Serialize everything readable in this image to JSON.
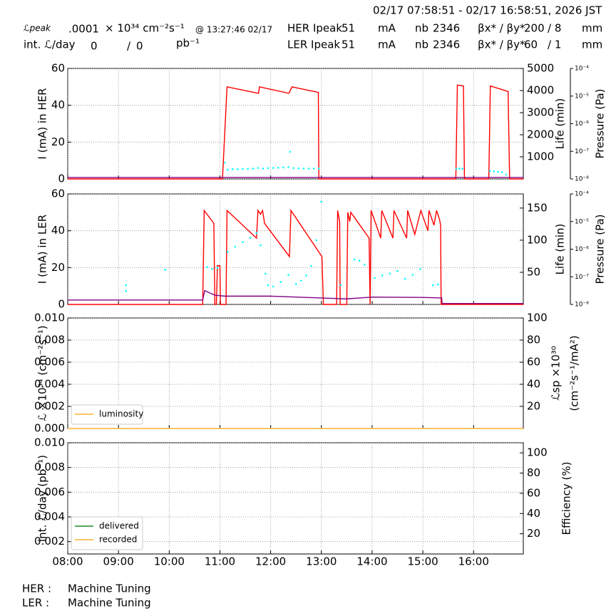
{
  "header": {
    "range": "02/17 07:58:51 - 02/17 16:58:51, 2026 JST",
    "lpeak_label": "ℒpeak",
    "lpeak_value": ".0001",
    "lpeak_unit": "× 10³⁴ cm⁻²s⁻¹",
    "lpeak_time": "@ 13:27:46 02/17",
    "intl_label": "int. ℒ/day",
    "intl_delivered": "0",
    "intl_sep": "/",
    "intl_recorded": "0",
    "intl_unit": "pb⁻¹",
    "her": {
      "label": "HER Ipeak",
      "current": "51",
      "current_unit": "mA",
      "nb_label": "nb",
      "nb": "2346",
      "beta_label": "βx* / βy*",
      "beta_x": "200",
      "beta_y": "/ 8",
      "beta_unit": "mm"
    },
    "ler": {
      "label": "LER Ipeak",
      "current": "51",
      "current_unit": "mA",
      "nb_label": "nb",
      "nb": "2346",
      "beta_label": "βx* / βy*",
      "beta_x": "60",
      "beta_y": "/ 1",
      "beta_unit": "mm"
    }
  },
  "chart_data": [
    {
      "type": "line",
      "ylabel": "I (mA) in HER",
      "y2label": "Life (min)",
      "y3label": "Pressure (Pa)",
      "ylim": [
        0,
        60
      ],
      "yticks": [
        0,
        20,
        40,
        60
      ],
      "y2lim": [
        0,
        5000
      ],
      "y2ticks": [
        1000,
        2000,
        3000,
        4000,
        5000
      ],
      "y3lim": [
        1e-08,
        0.0001
      ],
      "y3scale": "log",
      "y3ticks": [
        {
          "value": 1e-08,
          "label": "10⁻⁸"
        },
        {
          "value": 1e-07,
          "label": "10⁻⁷"
        },
        {
          "value": 1e-06,
          "label": "10⁻⁶"
        },
        {
          "value": 1e-05,
          "label": "10⁻⁵"
        },
        {
          "value": 0.0001,
          "label": "10⁻⁴"
        }
      ],
      "grid": true,
      "series": [
        {
          "color": "#ff0000",
          "x": [
            8,
            11.05,
            11.14,
            11.76,
            11.78,
            12.36,
            12.42,
            12.94,
            12.95,
            15.65,
            15.68,
            15.8,
            15.82,
            16.3,
            16.33,
            16.68,
            16.71,
            16.98
          ],
          "values": [
            0,
            0,
            50,
            46.5,
            50,
            46.5,
            50,
            47,
            0,
            0,
            51,
            50.5,
            0,
            0,
            50.5,
            47.5,
            0,
            0
          ]
        },
        {
          "type": "scatter",
          "axis": "y2",
          "color": "#00ffff",
          "x": [
            11.1,
            11.15,
            11.25,
            11.35,
            11.45,
            11.55,
            11.65,
            11.75,
            11.85,
            11.95,
            12.05,
            12.15,
            12.25,
            12.35,
            12.38,
            12.45,
            12.55,
            12.65,
            12.75,
            12.85,
            12.95,
            15.66,
            15.72,
            15.78,
            16.32,
            16.4,
            16.48,
            16.56,
            16.64
          ],
          "values": [
            740,
            420,
            440,
            440,
            450,
            460,
            470,
            500,
            470,
            490,
            500,
            510,
            520,
            540,
            1230,
            490,
            480,
            470,
            470,
            470,
            470,
            460,
            470,
            460,
            360,
            340,
            320,
            300,
            200
          ]
        },
        {
          "color": "#800080",
          "x": [
            8,
            16.98
          ],
          "values": [
            0.8,
            0.8
          ]
        }
      ]
    },
    {
      "type": "line",
      "ylabel": "I (mA) in LER",
      "y2label": "Life (min)",
      "y3label": "Pressure (Pa)",
      "ylim": [
        0,
        60
      ],
      "yticks": [
        0,
        20,
        40,
        60
      ],
      "y2lim": [
        0,
        172
      ],
      "y2ticks": [
        50,
        100,
        150
      ],
      "y3lim": [
        1e-08,
        0.0001
      ],
      "y3scale": "log",
      "y3ticks": [
        {
          "value": 1e-08,
          "label": "10⁻⁸"
        },
        {
          "value": 1e-07,
          "label": "10⁻⁷"
        },
        {
          "value": 1e-06,
          "label": "10⁻⁶"
        },
        {
          "value": 1e-05,
          "label": "10⁻⁵"
        },
        {
          "value": 0.0001,
          "label": "10⁻⁴"
        }
      ],
      "grid": true,
      "series": [
        {
          "color": "#ff0000",
          "x": [
            8,
            10.66,
            10.69,
            10.88,
            10.9,
            10.93,
            10.95,
            11.0,
            11.01,
            11.12,
            11.14,
            11.72,
            11.75,
            11.8,
            11.84,
            11.88,
            12.37,
            12.4,
            13.01,
            13.04,
            13.3,
            13.32,
            13.36,
            13.37,
            13.5,
            13.52,
            13.56,
            13.58,
            13.94,
            13.96,
            13.98,
            14.17,
            14.19,
            14.41,
            14.43,
            14.68,
            14.7,
            14.84,
            14.96,
            15.1,
            15.12,
            15.22,
            15.27,
            15.33,
            15.35,
            15.36,
            16.98
          ],
          "values": [
            0,
            0,
            51,
            44,
            0,
            0,
            21,
            21,
            0,
            0,
            51,
            36,
            51,
            49,
            51,
            44,
            26,
            51,
            26,
            0,
            0,
            51,
            45,
            0,
            0,
            50,
            45,
            50,
            36,
            0,
            51,
            36,
            51,
            36,
            51,
            36,
            51,
            38,
            51,
            40,
            51,
            43,
            51,
            46,
            43,
            0,
            0
          ]
        },
        {
          "type": "scatter",
          "axis": "y2",
          "color": "#00ffff",
          "x": [
            9.15,
            9.15,
            9.92,
            10.75,
            10.85,
            10.95,
            11.15,
            11.3,
            11.45,
            11.6,
            11.72,
            11.8,
            11.9,
            11.95,
            12.05,
            12.2,
            12.35,
            12.5,
            12.6,
            12.7,
            12.8,
            12.9,
            13.0,
            13.38,
            13.65,
            13.75,
            13.85,
            14.05,
            14.2,
            14.35,
            14.5,
            14.65,
            14.8,
            14.95,
            15.2,
            15.3
          ],
          "values": [
            30,
            21,
            54,
            58,
            55,
            57,
            82,
            90,
            97,
            104,
            111,
            92,
            48,
            30,
            28,
            35,
            46,
            32,
            37,
            45,
            60,
            100,
            160,
            30,
            70,
            68,
            62,
            41,
            45,
            48,
            52,
            40,
            46,
            55,
            30,
            31
          ]
        },
        {
          "color": "#800080",
          "x": [
            8,
            10.66,
            10.7,
            10.9,
            11.1,
            12.0,
            13.0,
            13.5,
            14.0,
            15.0,
            15.37,
            15.38,
            16.98
          ],
          "values": [
            2.4,
            2.4,
            7.5,
            5,
            4.5,
            4.5,
            3.5,
            3,
            4,
            3.8,
            3.5,
            0.5,
            0.5
          ]
        }
      ]
    },
    {
      "type": "line",
      "ylabel": "ℒ ×10³⁴ (cm⁻²s⁻¹)",
      "y2label": [
        "ℒsp ×10³⁰",
        "(cm⁻²s⁻¹/mA²)"
      ],
      "ylim": [
        0,
        0.01
      ],
      "yticks": [
        {
          "value": 0,
          "label": "0.000"
        },
        {
          "value": 0.002,
          "label": "0.002"
        },
        {
          "value": 0.004,
          "label": "0.004"
        },
        {
          "value": 0.006,
          "label": "0.006"
        },
        {
          "value": 0.008,
          "label": "0.008"
        },
        {
          "value": 0.01,
          "label": "0.010"
        }
      ],
      "y2lim": [
        0,
        100
      ],
      "y2ticks": [
        20,
        40,
        60,
        80,
        100
      ],
      "grid": true,
      "legend": "lower left",
      "series": [
        {
          "name": "luminosity",
          "color": "#ffb330",
          "x": [
            8,
            16.98
          ],
          "values": [
            0,
            0
          ]
        }
      ]
    },
    {
      "type": "line",
      "ylabel": "int. ℒ/day (pb⁻¹)",
      "y2label": "Efficiency (%)",
      "ylim": [
        0.001,
        0.01
      ],
      "yticks": [
        {
          "value": 0.002,
          "label": "0.002"
        },
        {
          "value": 0.004,
          "label": "0.004"
        },
        {
          "value": 0.006,
          "label": "0.006"
        },
        {
          "value": 0.008,
          "label": "0.008"
        },
        {
          "value": 0.01,
          "label": "0.010"
        }
      ],
      "y2lim": [
        0,
        110
      ],
      "y2ticks": [
        20,
        40,
        60,
        80,
        100
      ],
      "grid": true,
      "legend": "lower left",
      "xlim": [
        8,
        16.98
      ],
      "xticks": [
        {
          "value": 8,
          "label": "08:00"
        },
        {
          "value": 9,
          "label": "09:00"
        },
        {
          "value": 10,
          "label": "10:00"
        },
        {
          "value": 11,
          "label": "11:00"
        },
        {
          "value": 12,
          "label": "12:00"
        },
        {
          "value": 13,
          "label": "13:00"
        },
        {
          "value": 14,
          "label": "14:00"
        },
        {
          "value": 15,
          "label": "15:00"
        },
        {
          "value": 16,
          "label": "16:00"
        }
      ],
      "series": [
        {
          "name": "delivered",
          "color": "#228b22",
          "x": [],
          "values": []
        },
        {
          "name": "recorded",
          "color": "#ffb330",
          "x": [],
          "values": []
        }
      ]
    }
  ],
  "footer": {
    "her_label": "HER :",
    "her_status": "Machine Tuning",
    "ler_label": "LER :",
    "ler_status": "Machine Tuning"
  }
}
